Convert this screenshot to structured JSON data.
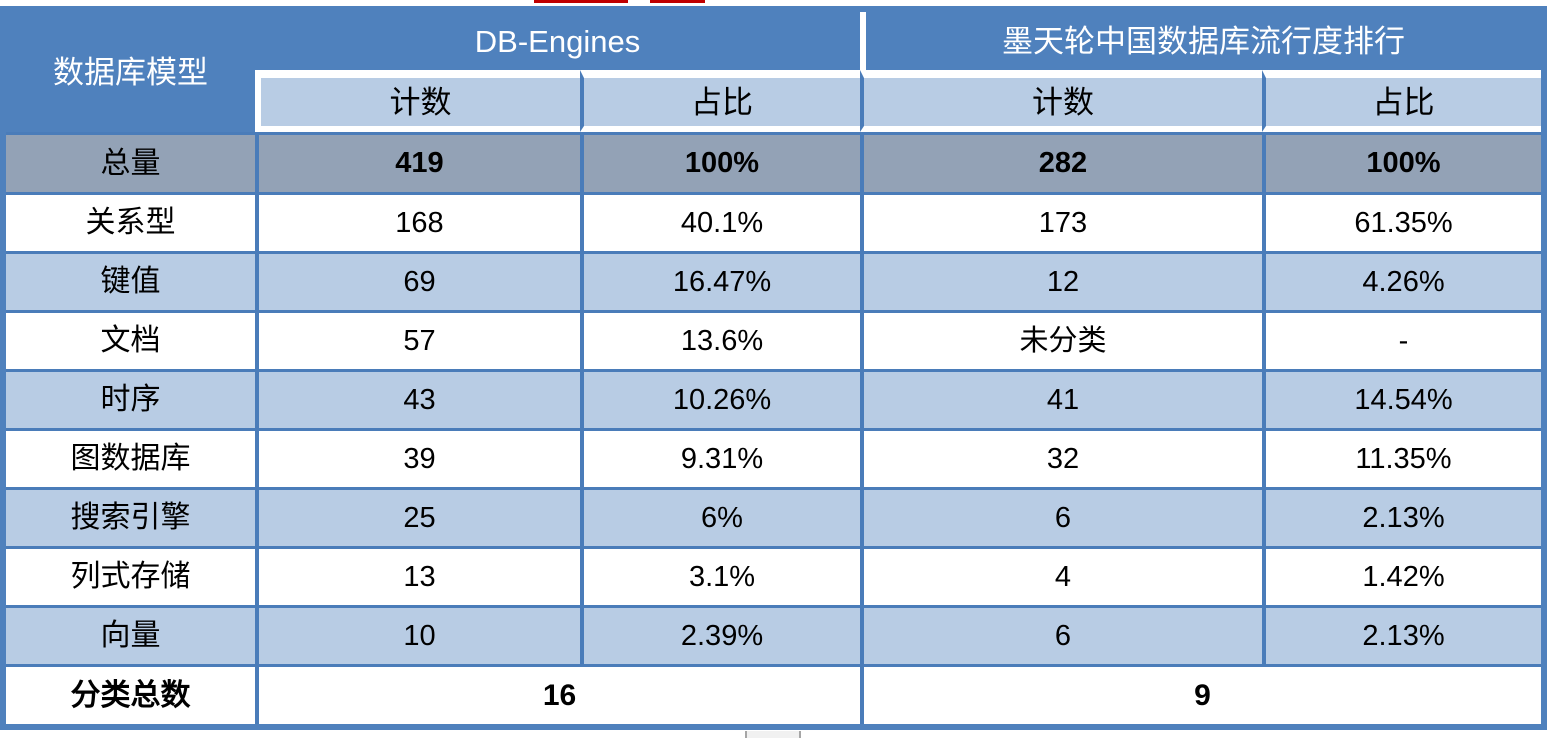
{
  "table": {
    "corner_header": "数据库模型",
    "sections": [
      {
        "title": "DB-Engines",
        "subheaders": [
          "计数",
          "占比"
        ]
      },
      {
        "title": "墨天轮中国数据库流行度排行",
        "subheaders": [
          "计数",
          "占比"
        ]
      }
    ],
    "rows": [
      {
        "label": "总量",
        "cells": [
          "419",
          "100%",
          "282",
          "100%"
        ],
        "emphasis": "bold-total"
      },
      {
        "label": "关系型",
        "cells": [
          "168",
          "40.1%",
          "173",
          "61.35%"
        ]
      },
      {
        "label": "键值",
        "cells": [
          "69",
          "16.47%",
          "12",
          "4.26%"
        ]
      },
      {
        "label": "文档",
        "cells": [
          "57",
          "13.6%",
          "未分类",
          "-"
        ]
      },
      {
        "label": "时序",
        "cells": [
          "43",
          "10.26%",
          "41",
          "14.54%"
        ]
      },
      {
        "label": "图数据库",
        "cells": [
          "39",
          "9.31%",
          "32",
          "11.35%"
        ]
      },
      {
        "label": "搜索引擎",
        "cells": [
          "25",
          "6%",
          "6",
          "2.13%"
        ]
      },
      {
        "label": "列式存储",
        "cells": [
          "13",
          "3.1%",
          "4",
          "1.42%"
        ]
      },
      {
        "label": "向量",
        "cells": [
          "10",
          "2.39%",
          "6",
          "2.13%"
        ]
      }
    ],
    "footer": {
      "label": "分类总数",
      "values": [
        "16",
        "9"
      ]
    }
  },
  "chart_data": {
    "type": "table",
    "title": "数据库模型 — DB-Engines vs 墨天轮中国数据库流行度排行",
    "columns": [
      "数据库模型",
      "DB-Engines 计数",
      "DB-Engines 占比",
      "墨天轮 计数",
      "墨天轮 占比"
    ],
    "rows": [
      [
        "总量",
        "419",
        "100%",
        "282",
        "100%"
      ],
      [
        "关系型",
        "168",
        "40.1%",
        "173",
        "61.35%"
      ],
      [
        "键值",
        "69",
        "16.47%",
        "12",
        "4.26%"
      ],
      [
        "文档",
        "57",
        "13.6%",
        "未分类",
        "-"
      ],
      [
        "时序",
        "43",
        "10.26%",
        "41",
        "14.54%"
      ],
      [
        "图数据库",
        "39",
        "9.31%",
        "32",
        "11.35%"
      ],
      [
        "搜索引擎",
        "25",
        "6%",
        "6",
        "2.13%"
      ],
      [
        "列式存储",
        "13",
        "3.1%",
        "4",
        "1.42%"
      ],
      [
        "向量",
        "10",
        "2.39%",
        "6",
        "2.13%"
      ],
      [
        "分类总数",
        "16",
        "",
        "9",
        ""
      ]
    ]
  },
  "colors": {
    "header_blue": "#4f81bd",
    "band_light_blue": "#b8cce4",
    "total_row_gray": "#93a2b6",
    "grid_border_blue": "#4a7cb9",
    "artifact_red": "#c00000"
  }
}
